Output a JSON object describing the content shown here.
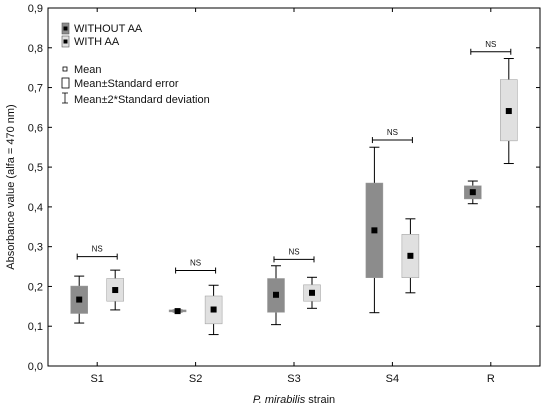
{
  "chart_data": {
    "type": "box",
    "xlabel_italic": "P. mirabilis",
    "xlabel_rest": " strain",
    "ylabel": "Absorbance value (alfa = 470 nm)",
    "ylim": [
      0,
      0.9
    ],
    "yticks": [
      "0,0",
      "0,1",
      "0,2",
      "0,3",
      "0,4",
      "0,5",
      "0,6",
      "0,7",
      "0,8",
      "0,9"
    ],
    "categories": [
      "S1",
      "S2",
      "S3",
      "S4",
      "R"
    ],
    "grid": false,
    "series": [
      {
        "name": "WITHOUT AA",
        "color": "#8c8c8c",
        "boxes": [
          {
            "mean": 0.167,
            "se_low": 0.132,
            "se_high": 0.201,
            "sd2_low": 0.108,
            "sd2_high": 0.226
          },
          {
            "mean": 0.138,
            "se_low": 0.136,
            "se_high": 0.141,
            "sd2_low": 0.136,
            "sd2_high": 0.141
          },
          {
            "mean": 0.179,
            "se_low": 0.135,
            "se_high": 0.22,
            "sd2_low": 0.104,
            "sd2_high": 0.252
          },
          {
            "mean": 0.341,
            "se_low": 0.222,
            "se_high": 0.46,
            "sd2_low": 0.134,
            "sd2_high": 0.55
          },
          {
            "mean": 0.437,
            "se_low": 0.42,
            "se_high": 0.453,
            "sd2_low": 0.408,
            "sd2_high": 0.465
          }
        ]
      },
      {
        "name": "WITH AA",
        "color": "#e0e0e0",
        "boxes": [
          {
            "mean": 0.191,
            "se_low": 0.163,
            "se_high": 0.22,
            "sd2_low": 0.141,
            "sd2_high": 0.241
          },
          {
            "mean": 0.142,
            "se_low": 0.106,
            "se_high": 0.176,
            "sd2_low": 0.079,
            "sd2_high": 0.203
          },
          {
            "mean": 0.184,
            "se_low": 0.163,
            "se_high": 0.204,
            "sd2_low": 0.145,
            "sd2_high": 0.223
          },
          {
            "mean": 0.277,
            "se_low": 0.222,
            "se_high": 0.331,
            "sd2_low": 0.184,
            "sd2_high": 0.37
          },
          {
            "mean": 0.641,
            "se_low": 0.566,
            "se_high": 0.72,
            "sd2_low": 0.509,
            "sd2_high": 0.773
          }
        ]
      }
    ],
    "significance": [
      {
        "category": "S1",
        "label": "NS",
        "y": 0.275
      },
      {
        "category": "S2",
        "label": "NS",
        "y": 0.24
      },
      {
        "category": "S3",
        "label": "NS",
        "y": 0.268
      },
      {
        "category": "S4",
        "label": "NS",
        "y": 0.568
      },
      {
        "category": "R",
        "label": "NS",
        "y": 0.79
      }
    ],
    "legend": {
      "placement": "top-left",
      "series_items": [
        "WITHOUT AA",
        "WITH AA"
      ],
      "stat_items": [
        "Mean",
        "Mean±Standard error",
        "Mean±2*Standard deviation"
      ]
    }
  }
}
